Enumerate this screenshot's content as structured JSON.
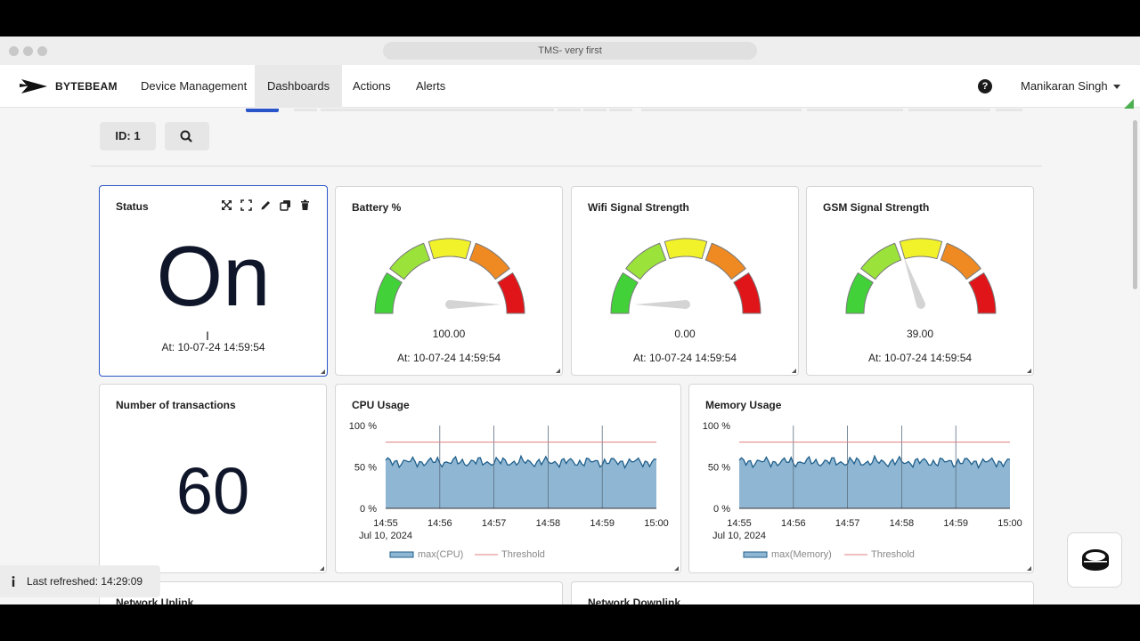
{
  "browser": {
    "title": "TMS- very first"
  },
  "nav": {
    "brand": "BYTEBEAM",
    "items": [
      "Device Management",
      "Dashboards",
      "Actions",
      "Alerts"
    ],
    "active": "Dashboards",
    "user": "Manikaran Singh"
  },
  "filter": {
    "id_label": "ID: 1"
  },
  "panels": {
    "status": {
      "title": "Status",
      "value": "On",
      "timestamp": "At: 10-07-24 14:59:54"
    },
    "battery": {
      "title": "Battery %",
      "value": "100.00",
      "level": 100,
      "timestamp": "At: 10-07-24 14:59:54"
    },
    "wifi": {
      "title": "Wifi Signal Strength",
      "value": "0.00",
      "level": 0,
      "timestamp": "At: 10-07-24 14:59:54"
    },
    "gsm": {
      "title": "GSM Signal Strength",
      "value": "39.00",
      "level": 39,
      "timestamp": "At: 10-07-24 14:59:54"
    },
    "transactions": {
      "title": "Number of transactions",
      "value": "60"
    },
    "network_uplink": {
      "title": "Network Uplink"
    },
    "network_downlink": {
      "title": "Network Downlink"
    }
  },
  "gauge_colors": [
    "#43d13a",
    "#9be33a",
    "#f2f22a",
    "#ef8a22",
    "#e0151a"
  ],
  "chart_data": [
    {
      "type": "area",
      "title": "CPU Usage",
      "y_ticks": [
        "100 %",
        "50 %",
        "0 %"
      ],
      "ylim": [
        0,
        100
      ],
      "x_ticks": [
        "14:55",
        "14:56",
        "14:57",
        "14:58",
        "14:59",
        "15:00"
      ],
      "x_date": "Jul 10, 2024",
      "threshold": 80,
      "series": [
        {
          "name": "max(CPU)",
          "color": "#8fb7d3",
          "line_color": "#1f5f8b",
          "approx_level": 56
        },
        {
          "name": "Threshold",
          "color": "#e08080",
          "value": 80
        }
      ]
    },
    {
      "type": "area",
      "title": "Memory Usage",
      "y_ticks": [
        "100 %",
        "50 %",
        "0 %"
      ],
      "ylim": [
        0,
        100
      ],
      "x_ticks": [
        "14:55",
        "14:56",
        "14:57",
        "14:58",
        "14:59",
        "15:00"
      ],
      "x_date": "Jul 10, 2024",
      "threshold": 80,
      "series": [
        {
          "name": "max(Memory)",
          "color": "#8fb7d3",
          "line_color": "#1f5f8b",
          "approx_level": 56
        },
        {
          "name": "Threshold",
          "color": "#e08080",
          "value": 80
        }
      ]
    }
  ],
  "toast": {
    "text": "Last refreshed: 14:29:09"
  }
}
